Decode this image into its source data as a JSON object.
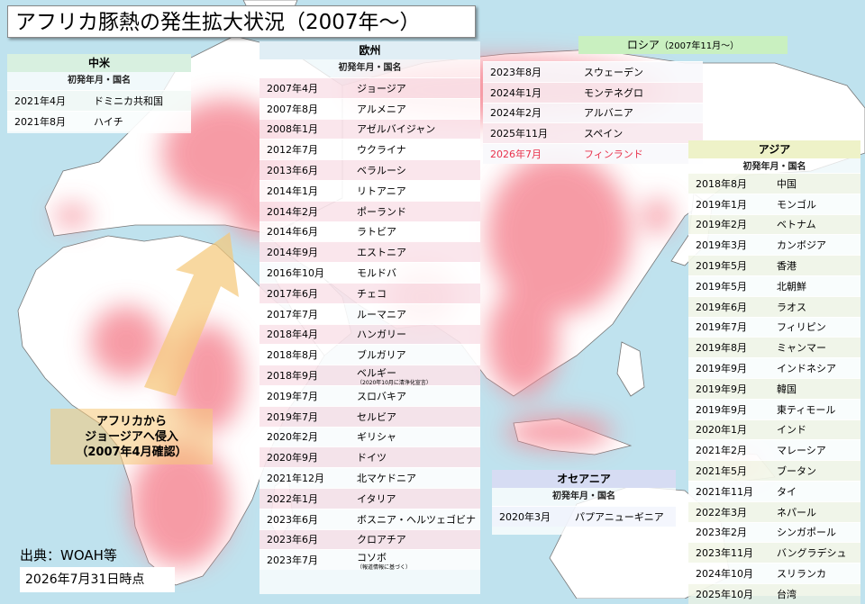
{
  "title": "アフリカ豚熱の発生拡大状況（2007年～）",
  "source": "出典：WOAH等",
  "as_of": "2026年7月31日時点",
  "arrow_label": [
    "アフリカから",
    "ジョージアへ侵入",
    "（2007年4月確認）"
  ],
  "colors": {
    "outbreak": "#f58a96",
    "land": "#ffffff",
    "sea": "#bfe2ee",
    "highlight": "#e8304a",
    "europe_header": "#e0eef5",
    "asia_header": "#eef2c8",
    "russia_header": "#c9f0c0",
    "latam_header": "#d8f0e0",
    "oceania_header": "#d6dcf3"
  },
  "latin_america": {
    "header": "中米",
    "subheader": "初発年月・国名",
    "rows": [
      {
        "date": "2021年4月",
        "country": "ドミニカ共和国"
      },
      {
        "date": "2021年8月",
        "country": "ハイチ"
      }
    ]
  },
  "europe": {
    "header": "欧州",
    "subheader": "初発年月・国名",
    "rows": [
      {
        "date": "2007年4月",
        "country": "ジョージア"
      },
      {
        "date": "2007年8月",
        "country": "アルメニア"
      },
      {
        "date": "2008年1月",
        "country": "アゼルバイジャン"
      },
      {
        "date": "2012年7月",
        "country": "ウクライナ"
      },
      {
        "date": "2013年6月",
        "country": "ベラルーシ"
      },
      {
        "date": "2014年1月",
        "country": "リトアニア"
      },
      {
        "date": "2014年2月",
        "country": "ポーランド"
      },
      {
        "date": "2014年6月",
        "country": "ラトビア"
      },
      {
        "date": "2014年9月",
        "country": "エストニア"
      },
      {
        "date": "2016年10月",
        "country": "モルドバ"
      },
      {
        "date": "2017年6月",
        "country": "チェコ"
      },
      {
        "date": "2017年7月",
        "country": "ルーマニア"
      },
      {
        "date": "2018年4月",
        "country": "ハンガリー"
      },
      {
        "date": "2018年8月",
        "country": "ブルガリア"
      },
      {
        "date": "2018年9月",
        "country": "ベルギー",
        "note": "（2020年10月に清浄化宣言）"
      },
      {
        "date": "2019年7月",
        "country": "スロバキア"
      },
      {
        "date": "2019年7月",
        "country": "セルビア"
      },
      {
        "date": "2020年2月",
        "country": "ギリシャ"
      },
      {
        "date": "2020年9月",
        "country": "ドイツ"
      },
      {
        "date": "2021年12月",
        "country": "北マケドニア"
      },
      {
        "date": "2022年1月",
        "country": "イタリア"
      },
      {
        "date": "2023年6月",
        "country": "ボスニア・ヘルツェゴビナ"
      },
      {
        "date": "2023年6月",
        "country": "クロアチア"
      },
      {
        "date": "2023年7月",
        "country": "コソボ",
        "note": "（報道情報に基づく）"
      }
    ]
  },
  "europe_cont": {
    "rows": [
      {
        "date": "2023年8月",
        "country": "スウェーデン"
      },
      {
        "date": "2024年1月",
        "country": "モンテネグロ"
      },
      {
        "date": "2024年2月",
        "country": "アルバニア"
      },
      {
        "date": "2025年11月",
        "country": "スペイン"
      },
      {
        "date": "2026年7月",
        "country": "フィンランド",
        "highlight": true
      }
    ]
  },
  "russia": {
    "header": "ロシア",
    "header_note": "（2007年11月～）"
  },
  "asia": {
    "header": "アジア",
    "subheader": "初発年月・国名",
    "rows": [
      {
        "date": "2018年8月",
        "country": "中国"
      },
      {
        "date": "2019年1月",
        "country": "モンゴル"
      },
      {
        "date": "2019年2月",
        "country": "ベトナム"
      },
      {
        "date": "2019年3月",
        "country": "カンボジア"
      },
      {
        "date": "2019年5月",
        "country": "香港"
      },
      {
        "date": "2019年5月",
        "country": "北朝鮮"
      },
      {
        "date": "2019年6月",
        "country": "ラオス"
      },
      {
        "date": "2019年7月",
        "country": "フィリピン"
      },
      {
        "date": "2019年8月",
        "country": "ミャンマー"
      },
      {
        "date": "2019年9月",
        "country": "インドネシア"
      },
      {
        "date": "2019年9月",
        "country": "韓国"
      },
      {
        "date": "2019年9月",
        "country": "東ティモール"
      },
      {
        "date": "2020年1月",
        "country": "インド"
      },
      {
        "date": "2021年2月",
        "country": "マレーシア"
      },
      {
        "date": "2021年5月",
        "country": "ブータン"
      },
      {
        "date": "2021年11月",
        "country": "タイ"
      },
      {
        "date": "2022年3月",
        "country": "ネパール"
      },
      {
        "date": "2023年2月",
        "country": "シンガポール"
      },
      {
        "date": "2023年11月",
        "country": "バングラデシュ"
      },
      {
        "date": "2024年10月",
        "country": "スリランカ"
      },
      {
        "date": "2025年10月",
        "country": "台湾"
      }
    ]
  },
  "oceania": {
    "header": "オセアニア",
    "subheader": "初発年月・国名",
    "rows": [
      {
        "date": "2020年3月",
        "country": "パプアニューギニア"
      }
    ]
  }
}
